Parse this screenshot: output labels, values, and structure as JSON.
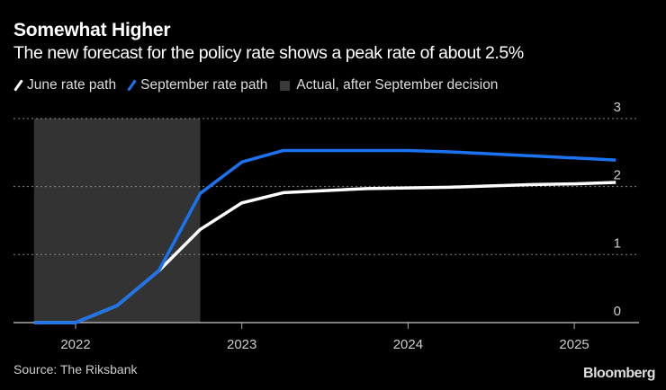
{
  "chart_data": {
    "type": "line",
    "title": "Somewhat Higher",
    "subtitle": "The new forecast for the policy rate shows a peak rate of about 2.5%",
    "xlabel": "",
    "ylabel": "",
    "xlim": [
      2021.75,
      2025.4
    ],
    "ylim": [
      0,
      3
    ],
    "x_ticks": [
      "2022",
      "2023",
      "2024",
      "2025"
    ],
    "y_ticks": [
      "0",
      "1",
      "2",
      "3"
    ],
    "grid": true,
    "legend_placement": "top-left",
    "shaded_region": {
      "name": "Actual, after September decision",
      "x_start": 2021.75,
      "x_end": 2022.75,
      "color": "#333333"
    },
    "series": [
      {
        "name": "June rate path",
        "color": "#ffffff",
        "x": [
          2021.75,
          2022.0,
          2022.25,
          2022.5,
          2022.75,
          2023.0,
          2023.25,
          2023.5,
          2023.75,
          2024.0,
          2024.25,
          2024.5,
          2024.75,
          2025.0,
          2025.25
        ],
        "y": [
          0,
          0,
          0.25,
          0.76,
          1.37,
          1.76,
          1.91,
          1.94,
          1.97,
          1.98,
          1.99,
          2.01,
          2.03,
          2.04,
          2.06
        ]
      },
      {
        "name": "September rate path",
        "color": "#1a73f0",
        "x": [
          2021.75,
          2022.0,
          2022.25,
          2022.5,
          2022.75,
          2023.0,
          2023.25,
          2023.5,
          2023.75,
          2024.0,
          2024.25,
          2024.5,
          2024.75,
          2025.0,
          2025.25
        ],
        "y": [
          0,
          0,
          0.25,
          0.76,
          1.9,
          2.36,
          2.53,
          2.53,
          2.53,
          2.53,
          2.51,
          2.48,
          2.45,
          2.42,
          2.39
        ]
      }
    ]
  },
  "source": "Source: The Riksbank",
  "brand": "Bloomberg"
}
